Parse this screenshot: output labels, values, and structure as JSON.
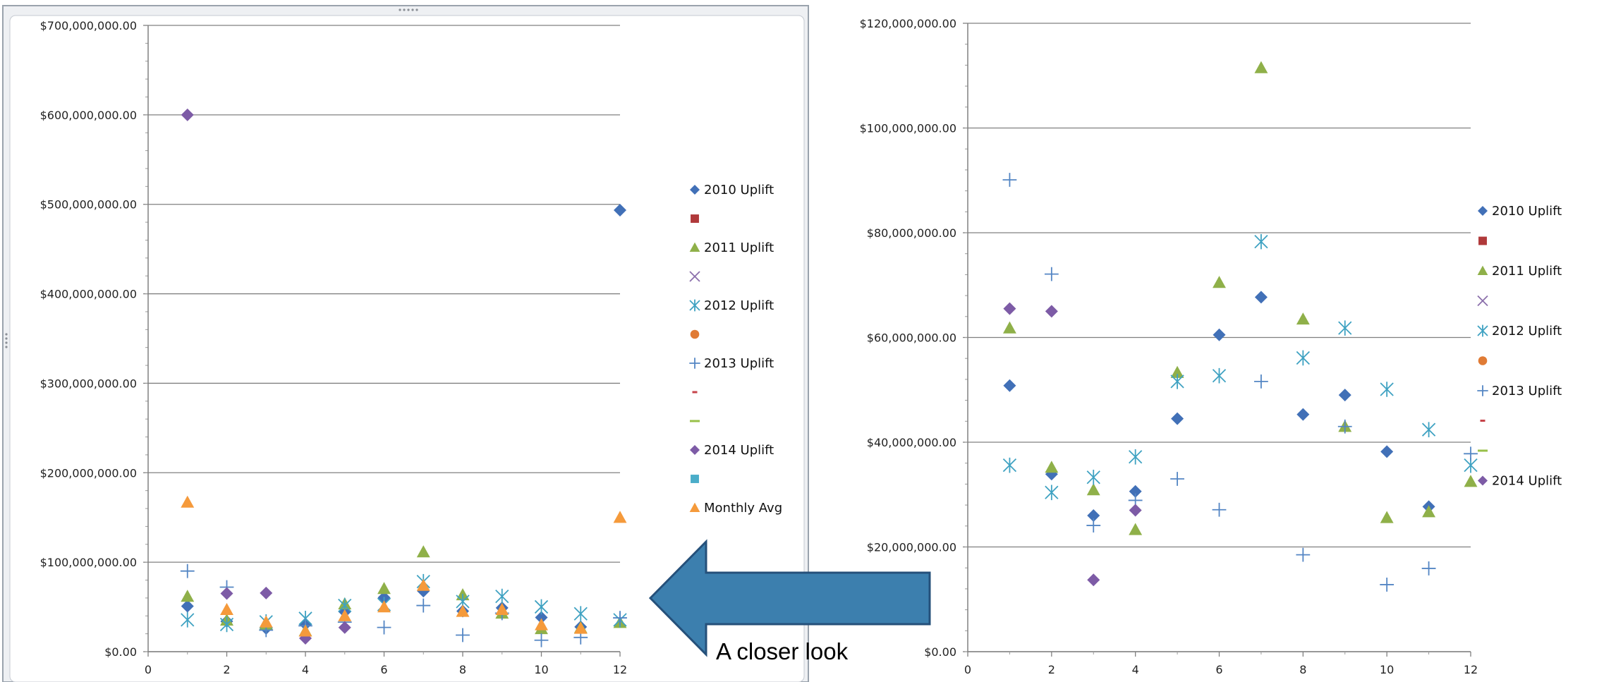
{
  "colors": {
    "2010 Uplift": "#4170b7",
    "s2": "#b0393a",
    "2011 Uplift": "#8fb049",
    "s4": "#8b6fab",
    "2012 Uplift": "#3fa2c2",
    "s6": "#e07b35",
    "2013 Uplift": "#5486c4",
    "s8": "#c64349",
    "s9": "#98c049",
    "2014 Uplift": "#7d5ba6",
    "s11": "#4aadc9",
    "Monthly Avg": "#f59a3b",
    "arrow_fill": "#3c7fae",
    "arrow_stroke": "#25507a"
  },
  "annotation": {
    "text": "A closer look",
    "arrow_direction": "left"
  },
  "chart_data": [
    {
      "type": "scatter",
      "xlim": [
        0,
        12
      ],
      "ylim": [
        0,
        700000000
      ],
      "x_ticks": [
        0,
        2,
        4,
        6,
        8,
        10,
        12
      ],
      "y_ticks": [
        "$0.00",
        "$100,000,000.00",
        "$200,000,000.00",
        "$300,000,000.00",
        "$400,000,000.00",
        "$500,000,000.00",
        "$600,000,000.00",
        "$700,000,000.00"
      ],
      "grid": true,
      "legend_position": "right",
      "legend": [
        {
          "label": "2010 Uplift",
          "marker": "diamond",
          "color_key": "2010 Uplift"
        },
        {
          "label": "",
          "marker": "square",
          "color_key": "s2"
        },
        {
          "label": "2011 Uplift",
          "marker": "triangle",
          "color_key": "2011 Uplift"
        },
        {
          "label": "",
          "marker": "x",
          "color_key": "s4"
        },
        {
          "label": "2012 Uplift",
          "marker": "star",
          "color_key": "2012 Uplift"
        },
        {
          "label": "",
          "marker": "circle",
          "color_key": "s6"
        },
        {
          "label": "2013 Uplift",
          "marker": "plus",
          "color_key": "2013 Uplift"
        },
        {
          "label": "",
          "marker": "dash",
          "color_key": "s8"
        },
        {
          "label": "",
          "marker": "longdash",
          "color_key": "s9"
        },
        {
          "label": "2014 Uplift",
          "marker": "diamond",
          "color_key": "2014 Uplift"
        },
        {
          "label": "",
          "marker": "square",
          "color_key": "s11"
        },
        {
          "label": "Monthly Avg",
          "marker": "triangle",
          "color_key": "Monthly Avg"
        }
      ],
      "series": [
        {
          "name": "2010 Uplift",
          "marker": "diamond",
          "color_key": "2010 Uplift",
          "x": [
            1,
            2,
            3,
            4,
            5,
            6,
            7,
            8,
            9,
            10,
            11,
            12
          ],
          "y": [
            50800000,
            33900000,
            26000000,
            30600000,
            44500000,
            60500000,
            67700000,
            45300000,
            49000000,
            38200000,
            27700000,
            493500000
          ]
        },
        {
          "name": "2011 Uplift",
          "marker": "triangle",
          "color_key": "2011 Uplift",
          "x": [
            1,
            2,
            3,
            4,
            5,
            6,
            7,
            8,
            9,
            10,
            11,
            12
          ],
          "y": [
            61800000,
            35200000,
            30900000,
            23300000,
            53300000,
            70500000,
            111500000,
            63500000,
            43000000,
            25600000,
            26700000,
            32500000
          ]
        },
        {
          "name": "2012 Uplift",
          "marker": "star",
          "color_key": "2012 Uplift",
          "x": [
            1,
            2,
            3,
            4,
            5,
            6,
            7,
            8,
            9,
            10,
            11,
            12
          ],
          "y": [
            35600000,
            30400000,
            33300000,
            37200000,
            51600000,
            52700000,
            78300000,
            56100000,
            61800000,
            50100000,
            42400000,
            35600000
          ]
        },
        {
          "name": "2013 Uplift",
          "marker": "plus",
          "color_key": "2013 Uplift",
          "x": [
            1,
            2,
            3,
            4,
            5,
            6,
            7,
            8,
            9,
            10,
            11,
            12
          ],
          "y": [
            90100000,
            72100000,
            24100000,
            28900000,
            33000000,
            27100000,
            51600000,
            18500000,
            43000000,
            12800000,
            15900000,
            37800000
          ]
        },
        {
          "name": "2014 Uplift",
          "marker": "diamond",
          "color_key": "2014 Uplift",
          "x": [
            1,
            2,
            3,
            4,
            5
          ],
          "y": [
            600000000,
            65000000,
            65500000,
            15000000,
            27000000
          ]
        },
        {
          "name": "Monthly Avg",
          "marker": "triangle",
          "color_key": "Monthly Avg",
          "x": [
            1,
            2,
            3,
            4,
            5,
            6,
            7,
            8,
            9,
            10,
            11,
            12
          ],
          "y": [
            167000000,
            47000000,
            33000000,
            23000000,
            40000000,
            50000000,
            74000000,
            45000000,
            47000000,
            30000000,
            26000000,
            150000000
          ]
        }
      ]
    },
    {
      "type": "scatter",
      "xlim": [
        0,
        12
      ],
      "ylim": [
        0,
        120000000
      ],
      "x_ticks": [
        0,
        2,
        4,
        6,
        8,
        10,
        12
      ],
      "y_ticks": [
        "$0.00",
        "$20,000,000.00",
        "$40,000,000.00",
        "$60,000,000.00",
        "$80,000,000.00",
        "$100,000,000.00",
        "$120,000,000.00"
      ],
      "grid": true,
      "legend_position": "right",
      "legend": [
        {
          "label": "2010 Uplift",
          "marker": "diamond",
          "color_key": "2010 Uplift"
        },
        {
          "label": "",
          "marker": "square",
          "color_key": "s2"
        },
        {
          "label": "2011 Uplift",
          "marker": "triangle",
          "color_key": "2011 Uplift"
        },
        {
          "label": "",
          "marker": "x",
          "color_key": "s4"
        },
        {
          "label": "2012 Uplift",
          "marker": "star",
          "color_key": "2012 Uplift"
        },
        {
          "label": "",
          "marker": "circle",
          "color_key": "s6"
        },
        {
          "label": "2013 Uplift",
          "marker": "plus",
          "color_key": "2013 Uplift"
        },
        {
          "label": "",
          "marker": "dash",
          "color_key": "s8"
        },
        {
          "label": "",
          "marker": "longdash",
          "color_key": "s9"
        },
        {
          "label": "2014 Uplift",
          "marker": "diamond",
          "color_key": "2014 Uplift"
        }
      ],
      "series": [
        {
          "name": "2010 Uplift",
          "marker": "diamond",
          "color_key": "2010 Uplift",
          "x": [
            1,
            2,
            3,
            4,
            5,
            6,
            7,
            8,
            9,
            10,
            11
          ],
          "y": [
            50800000,
            33900000,
            26000000,
            30600000,
            44500000,
            60500000,
            67700000,
            45300000,
            49000000,
            38200000,
            27700000
          ]
        },
        {
          "name": "2011 Uplift",
          "marker": "triangle",
          "color_key": "2011 Uplift",
          "x": [
            1,
            2,
            3,
            4,
            5,
            6,
            7,
            8,
            9,
            10,
            11,
            12
          ],
          "y": [
            61800000,
            35200000,
            30900000,
            23300000,
            53300000,
            70500000,
            111500000,
            63500000,
            43000000,
            25600000,
            26700000,
            32500000
          ]
        },
        {
          "name": "2012 Uplift",
          "marker": "star",
          "color_key": "2012 Uplift",
          "x": [
            1,
            2,
            3,
            4,
            5,
            6,
            7,
            8,
            9,
            10,
            11,
            12
          ],
          "y": [
            35600000,
            30400000,
            33300000,
            37200000,
            51600000,
            52700000,
            78300000,
            56100000,
            61800000,
            50100000,
            42400000,
            35600000
          ]
        },
        {
          "name": "2013 Uplift",
          "marker": "plus",
          "color_key": "2013 Uplift",
          "x": [
            1,
            2,
            3,
            4,
            5,
            6,
            7,
            8,
            9,
            10,
            11,
            12
          ],
          "y": [
            90100000,
            72100000,
            24100000,
            28900000,
            33000000,
            27100000,
            51600000,
            18500000,
            43000000,
            12800000,
            15900000,
            37800000
          ]
        },
        {
          "name": "2014 Uplift",
          "marker": "diamond",
          "color_key": "2014 Uplift",
          "x": [
            1,
            2,
            3,
            4
          ],
          "y": [
            65500000,
            65000000,
            13700000,
            27000000
          ]
        }
      ]
    }
  ]
}
